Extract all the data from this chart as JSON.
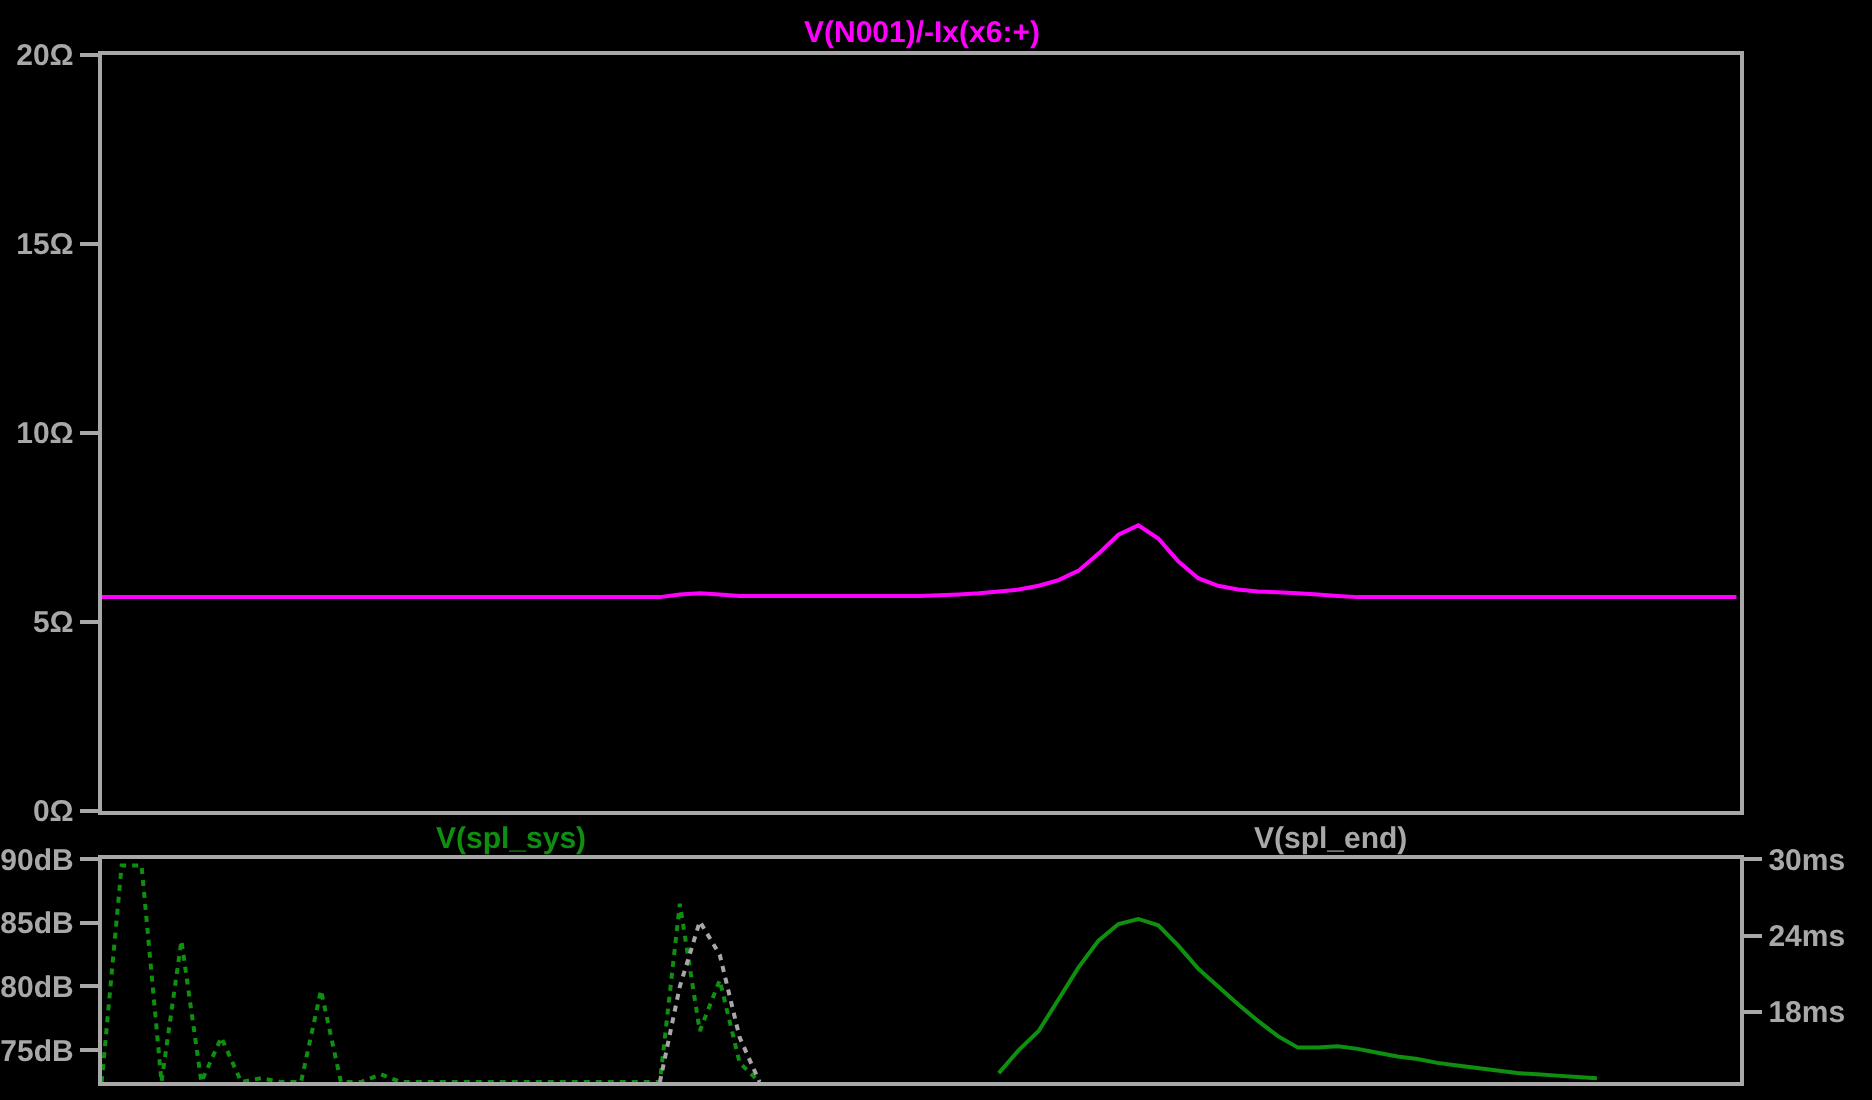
{
  "chart_data": [
    {
      "type": "line",
      "categories": [
        null,
        null,
        null,
        null,
        null,
        null,
        null,
        null,
        null,
        null,
        null,
        null,
        null,
        null,
        null,
        null,
        null,
        null,
        null,
        null,
        null,
        null,
        null,
        null,
        null,
        null,
        null,
        null,
        null,
        null,
        null,
        null,
        null,
        null,
        null,
        null,
        null,
        null,
        null,
        null,
        null,
        null,
        null,
        null,
        null,
        null,
        null,
        null,
        null,
        null,
        null,
        null,
        null,
        null,
        null,
        null,
        null,
        null,
        null,
        null,
        null,
        null,
        null,
        null,
        null,
        null,
        null,
        null,
        null,
        null,
        null,
        null,
        null,
        null,
        null,
        null,
        null,
        null,
        null,
        null,
        null,
        null,
        null
      ],
      "series": [
        {
          "name": "V(N001)/-Ix(x6:+)",
          "color": "#ff00ff",
          "values": [
            5.65,
            5.65,
            5.65,
            5.65,
            5.65,
            5.65,
            5.65,
            5.65,
            5.65,
            5.65,
            5.65,
            5.65,
            5.65,
            5.65,
            5.65,
            5.65,
            5.65,
            5.65,
            5.65,
            5.65,
            5.65,
            5.65,
            5.65,
            5.65,
            5.65,
            5.65,
            5.65,
            5.65,
            5.65,
            5.72,
            5.75,
            5.72,
            5.68,
            5.68,
            5.68,
            5.68,
            5.68,
            5.68,
            5.68,
            5.68,
            5.68,
            5.68,
            5.7,
            5.72,
            5.75,
            5.8,
            5.85,
            5.95,
            6.1,
            6.35,
            6.8,
            7.3,
            7.55,
            7.2,
            6.6,
            6.15,
            5.95,
            5.85,
            5.8,
            5.78,
            5.75,
            5.72,
            5.68,
            5.65,
            5.65,
            5.65,
            5.65,
            5.65,
            5.65,
            5.65,
            5.65,
            5.65,
            5.65,
            5.65,
            5.65,
            5.65,
            5.65,
            5.65,
            5.65,
            5.65,
            5.65,
            5.65,
            5.65
          ]
        }
      ],
      "ylim": [
        0,
        20
      ],
      "yticks": [
        {
          "value": 0,
          "label": "0Ω"
        },
        {
          "value": 5,
          "label": "5Ω"
        },
        {
          "value": 10,
          "label": "10Ω"
        },
        {
          "value": 15,
          "label": "15Ω"
        },
        {
          "value": 20,
          "label": "20Ω"
        }
      ],
      "tick_labels": "y",
      "grid": false,
      "legend": false
    },
    {
      "type": "line",
      "categories": [
        null,
        null,
        null,
        null,
        null,
        null,
        null,
        null,
        null,
        null,
        null,
        null,
        null,
        null,
        null,
        null,
        null,
        null,
        null,
        null,
        null,
        null,
        null,
        null,
        null,
        null,
        null,
        null,
        null,
        null,
        null,
        null,
        null,
        null,
        null,
        null,
        null,
        null,
        null,
        null,
        null,
        null,
        null,
        null,
        null,
        null,
        null,
        null,
        null,
        null,
        null,
        null,
        null,
        null,
        null,
        null,
        null,
        null,
        null,
        null,
        null,
        null,
        null,
        null,
        null,
        null,
        null,
        null,
        null,
        null,
        null,
        null,
        null,
        null,
        null,
        null,
        null,
        null,
        null,
        null,
        null,
        null,
        null
      ],
      "series": [
        {
          "name": "V(spl_sys)",
          "color": "#0f8f0f",
          "values": [
            null,
            null,
            null,
            null,
            null,
            null,
            null,
            null,
            null,
            null,
            null,
            null,
            null,
            null,
            null,
            null,
            null,
            null,
            null,
            null,
            null,
            null,
            null,
            null,
            null,
            null,
            null,
            null,
            null,
            null,
            null,
            null,
            null,
            null,
            null,
            null,
            null,
            null,
            null,
            null,
            null,
            null,
            null,
            null,
            null,
            73.2,
            75.0,
            76.5,
            79.0,
            81.5,
            83.6,
            84.9,
            85.3,
            84.8,
            83.2,
            81.4,
            80.0,
            78.6,
            77.3,
            76.1,
            75.2,
            75.2,
            75.3,
            75.1,
            74.8,
            74.5,
            74.3,
            74.0,
            73.8,
            73.6,
            73.4,
            73.2,
            73.1,
            73.0,
            72.9,
            72.8,
            null,
            null,
            null,
            null,
            null,
            null,
            null
          ]
        },
        {
          "color": "#0f8f0f",
          "axis": "y2",
          "line_style": "dotted",
          "values": [
            12.5,
            29.5,
            29.5,
            12.5,
            23.6,
            12.5,
            16.0,
            12.5,
            12.8,
            12.5,
            12.5,
            19.7,
            12.5,
            12.5,
            13.1,
            12.5,
            12.5,
            12.5,
            12.5,
            12.5,
            12.5,
            12.5,
            12.5,
            12.5,
            12.5,
            12.5,
            12.5,
            12.5,
            12.5,
            26.5,
            16.5,
            20.5,
            14.0,
            12.5,
            null,
            null,
            null,
            null,
            null,
            null,
            null,
            null,
            null,
            null,
            null,
            null,
            null,
            null,
            null,
            null,
            null,
            null,
            null,
            null,
            null,
            null,
            null,
            null,
            null,
            null,
            null,
            null,
            null,
            null,
            null,
            null,
            null,
            null,
            null,
            null,
            null,
            null,
            null,
            null,
            null,
            null,
            null,
            null,
            null,
            null,
            null,
            null,
            null
          ]
        },
        {
          "name": "V(spl_end)",
          "color": "#a8a8a8",
          "axis": "y2",
          "line_style": "dotted",
          "values": [
            null,
            null,
            null,
            null,
            null,
            null,
            null,
            null,
            null,
            null,
            null,
            null,
            null,
            null,
            null,
            null,
            null,
            null,
            null,
            null,
            null,
            null,
            null,
            null,
            null,
            null,
            null,
            null,
            12.5,
            20.0,
            25.1,
            22.5,
            16.0,
            12.5,
            null,
            null,
            null,
            null,
            null,
            null,
            null,
            null,
            null,
            null,
            null,
            null,
            null,
            null,
            null,
            null,
            null,
            null,
            null,
            null,
            null,
            null,
            null,
            null,
            null,
            null,
            null,
            null,
            null,
            null,
            null,
            null,
            null,
            null,
            null,
            null,
            null,
            null,
            null,
            null,
            null,
            null,
            null,
            null,
            null,
            null,
            null,
            null,
            null
          ]
        }
      ],
      "ylim": [
        72.5,
        90
      ],
      "yticks": [
        {
          "value": 75,
          "label": "75dB"
        },
        {
          "value": 80,
          "label": "80dB"
        },
        {
          "value": 85,
          "label": "85dB"
        },
        {
          "value": 90,
          "label": "90dB"
        }
      ],
      "y2lim": [
        12.5,
        30
      ],
      "y2ticks": [
        {
          "value": 18,
          "label": "18ms"
        },
        {
          "value": 24,
          "label": "24ms"
        },
        {
          "value": 30,
          "label": "30ms"
        }
      ],
      "tick_labels": "y",
      "grid": false,
      "legend": false
    }
  ]
}
